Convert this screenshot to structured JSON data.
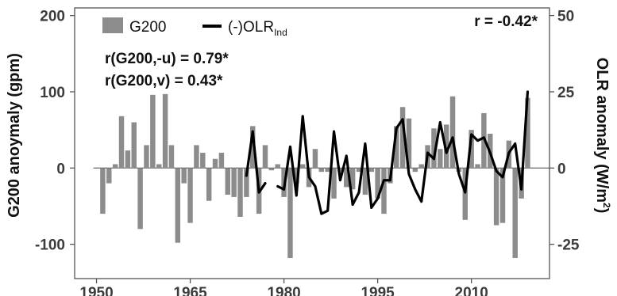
{
  "chart_data": {
    "type": "bar",
    "x": [
      1950,
      1951,
      1952,
      1953,
      1954,
      1955,
      1956,
      1957,
      1958,
      1959,
      1960,
      1961,
      1962,
      1963,
      1964,
      1965,
      1966,
      1967,
      1968,
      1969,
      1970,
      1971,
      1972,
      1973,
      1974,
      1975,
      1976,
      1977,
      1978,
      1979,
      1980,
      1981,
      1982,
      1983,
      1984,
      1985,
      1986,
      1987,
      1988,
      1989,
      1990,
      1991,
      1992,
      1993,
      1994,
      1995,
      1996,
      1997,
      1998,
      1999,
      2000,
      2001,
      2002,
      2003,
      2004,
      2005,
      2006,
      2007,
      2008,
      2009,
      2010,
      2011,
      2012,
      2013,
      2014,
      2015,
      2016,
      2017,
      2018,
      2019
    ],
    "series": [
      {
        "name": "G200",
        "kind": "bar",
        "axis": "left",
        "values": [
          0,
          -60,
          -20,
          5,
          68,
          23,
          60,
          -80,
          30,
          96,
          5,
          97,
          30,
          -98,
          -20,
          -72,
          30,
          20,
          -43,
          12,
          20,
          -35,
          -38,
          -64,
          -38,
          55,
          -60,
          30,
          -3,
          5,
          -38,
          -118,
          -20,
          5,
          -25,
          25,
          -5,
          -5,
          -40,
          -5,
          -25,
          -28,
          -5,
          -35,
          -5,
          -40,
          -60,
          -20,
          55,
          80,
          65,
          -5,
          5,
          30,
          52,
          25,
          57,
          94,
          -5,
          -68,
          50,
          5,
          72,
          45,
          -75,
          -72,
          36,
          -118,
          -40,
          92
        ]
      },
      {
        "name": "(-)OLR",
        "name_subscript": "Ind",
        "kind": "line",
        "axis": "right",
        "x": [
          1974,
          1975,
          1976,
          1977,
          null,
          1979,
          1980,
          1981,
          1982,
          1983,
          1984,
          1985,
          1986,
          1987,
          1988,
          1989,
          1990,
          1991,
          1992,
          1993,
          1994,
          1995,
          1996,
          1997,
          1998,
          1999,
          2000,
          2001,
          2002,
          2003,
          2004,
          2005,
          2006,
          2007,
          2008,
          2009,
          2010,
          2011,
          2012,
          2013,
          2014,
          2015,
          2016,
          2017,
          2018,
          2019
        ],
        "values": [
          -2.5,
          12,
          -8,
          -5,
          null,
          -6,
          -7,
          7,
          -9,
          17,
          -3,
          -6,
          -15,
          -14,
          12,
          -4,
          4,
          -12,
          -8,
          8,
          -13,
          -10,
          -4,
          -4,
          13,
          16,
          -2,
          -7,
          -11,
          5,
          3,
          15,
          5,
          10,
          -2,
          -8,
          11,
          9,
          10,
          5,
          -1,
          -3,
          5,
          8,
          -7,
          25
        ]
      }
    ],
    "xticks": [
      "1950",
      "1965",
      "1980",
      "1995",
      "2010"
    ],
    "xlim": [
      1946.5,
      2022.5
    ],
    "ylim_left": [
      -145,
      210
    ],
    "yticks_left": [
      "-100",
      "0",
      "100",
      "200"
    ],
    "ylim_right": [
      -36.25,
      52.5
    ],
    "yticks_right": [
      "-25",
      "0",
      "25",
      "50"
    ],
    "ylabel_left": "G200 anoymaly (gpm)",
    "ylabel_right": "OLR anomaly (W/m",
    "ylabel_right_superscript": "2",
    "ylabel_right_close": ")",
    "annotations": {
      "r_overall": "r = -0.42*",
      "r_u": "r(G200,-u) = 0.79*",
      "r_v": "r(G200,v) = 0.43*"
    },
    "legend_placement": "top-left",
    "grid": false,
    "colors": {
      "bar": "#8c8c8c",
      "line": "#000000",
      "axis": "#555555"
    }
  }
}
